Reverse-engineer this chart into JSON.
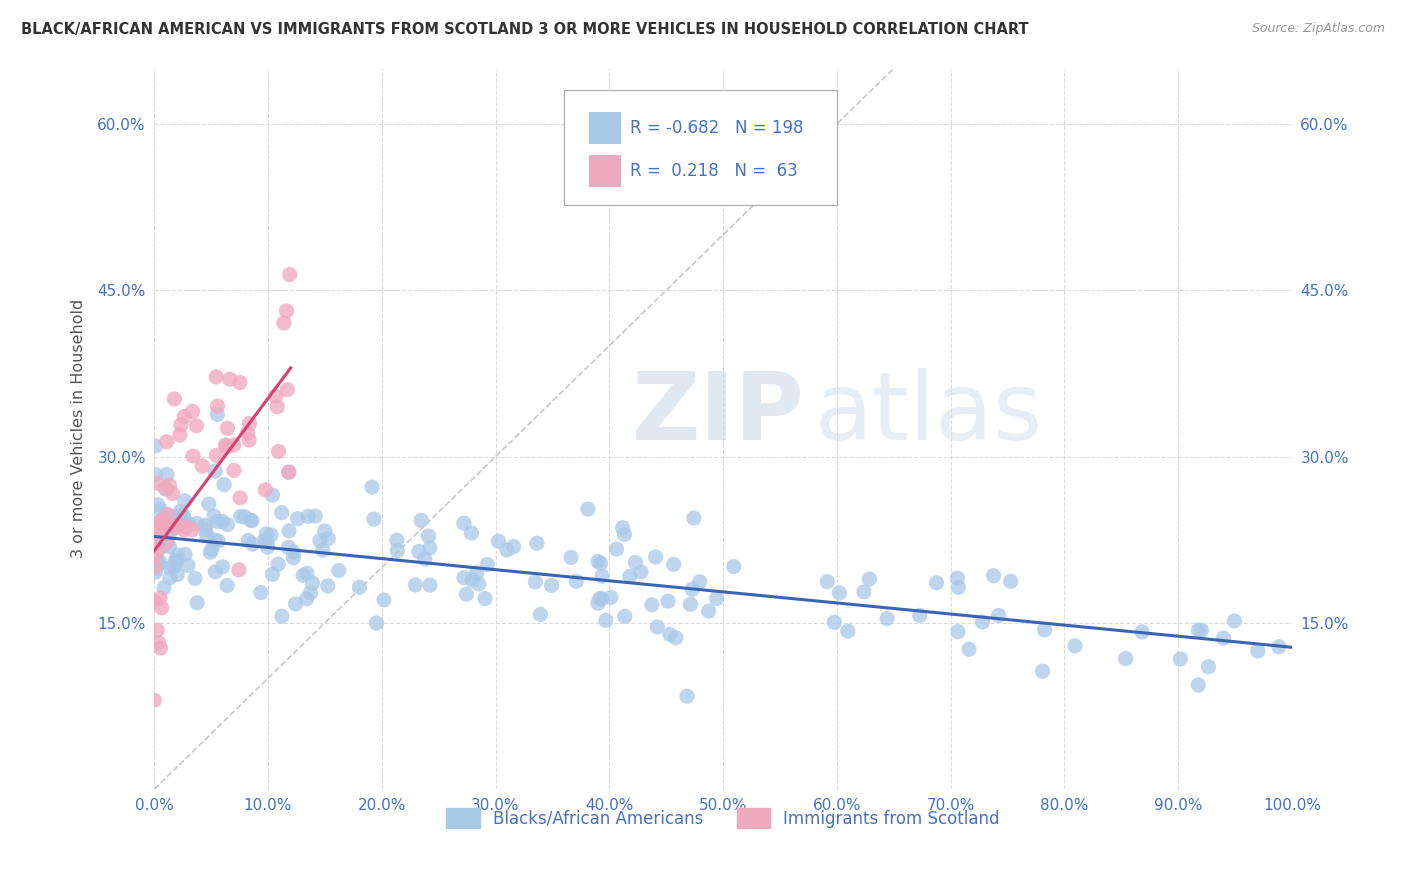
{
  "title": "BLACK/AFRICAN AMERICAN VS IMMIGRANTS FROM SCOTLAND 3 OR MORE VEHICLES IN HOUSEHOLD CORRELATION CHART",
  "source": "Source: ZipAtlas.com",
  "ylabel": "3 or more Vehicles in Household",
  "legend_labels": [
    "Blacks/African Americans",
    "Immigrants from Scotland"
  ],
  "blue_R": -0.682,
  "blue_N": 198,
  "pink_R": 0.218,
  "pink_N": 63,
  "blue_color": "#a8c8e8",
  "pink_color": "#f0aabf",
  "blue_line_color": "#3a65b5",
  "pink_line_color": "#d94070",
  "diagonal_color": "#c8c8c8",
  "watermark_zip": "ZIP",
  "watermark_atlas": "atlas",
  "background_color": "#ffffff",
  "grid_color": "#d8d8d8",
  "title_color": "#333333",
  "axis_tick_color": "#4472c4",
  "legend_text_color": "#4472c4",
  "xlim": [
    0.0,
    1.0
  ],
  "ylim": [
    0.0,
    0.65
  ],
  "yticks": [
    0.15,
    0.3,
    0.45,
    0.6
  ],
  "xticks": [
    0.0,
    0.1,
    0.2,
    0.3,
    0.4,
    0.5,
    0.6,
    0.7,
    0.8,
    0.9,
    1.0
  ],
  "blue_trend_x0": 0.0,
  "blue_trend_y0": 0.228,
  "blue_trend_x1": 1.0,
  "blue_trend_y1": 0.128,
  "pink_trend_x0": 0.0,
  "pink_trend_y0": 0.215,
  "pink_trend_x1": 0.12,
  "pink_trend_y1": 0.38
}
